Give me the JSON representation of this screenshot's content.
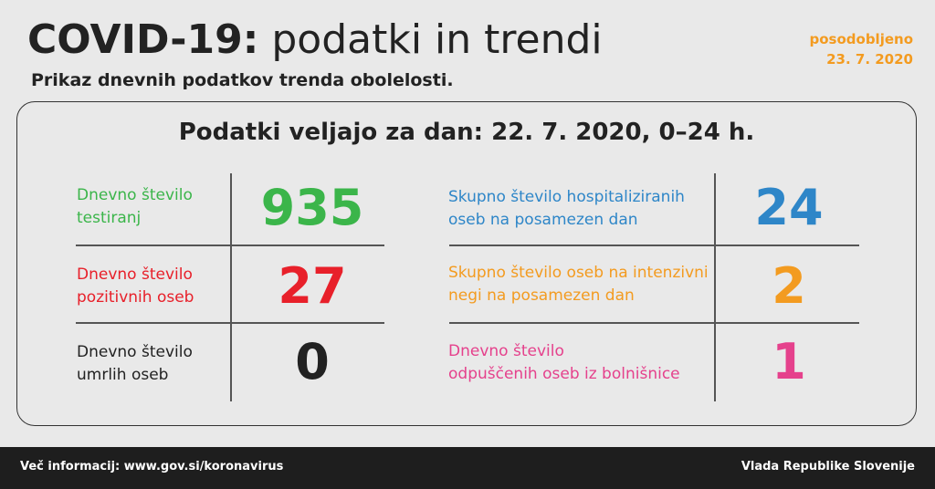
{
  "header": {
    "title_bold": "COVID-19:",
    "title_light": "podatki in trendi",
    "subtitle": "Prikaz dnevnih podatkov trenda obolelosti.",
    "updated_label": "posodobljeno",
    "updated_date": "23. 7. 2020"
  },
  "card": {
    "heading": "Podatki veljajo za dan: 22. 7. 2020, 0–24 h.",
    "left": [
      {
        "label1": "Dnevno število",
        "label2": "testiranj",
        "value": "935",
        "color": "#3bb54a"
      },
      {
        "label1": "Dnevno število",
        "label2": "pozitivnih oseb",
        "value": "27",
        "color": "#e8202a"
      },
      {
        "label1": "Dnevno število",
        "label2": "umrlih oseb",
        "value": "0",
        "color": "#222222"
      }
    ],
    "right": [
      {
        "label1": "Skupno število hospitaliziranih",
        "label2": "oseb na posamezen dan",
        "value": "24",
        "color": "#2e86c8"
      },
      {
        "label1": "Skupno število oseb na intenzivni",
        "label2": "negi na posamezen dan",
        "value": "2",
        "color": "#f39b20"
      },
      {
        "label1": "Dnevno število",
        "label2": "odpuščenih oseb iz bolnišnice",
        "value": "1",
        "color": "#e5418c"
      }
    ]
  },
  "footer": {
    "info": "Več informacij: www.gov.si/koronavirus",
    "org": "Vlada Republike Slovenije"
  }
}
